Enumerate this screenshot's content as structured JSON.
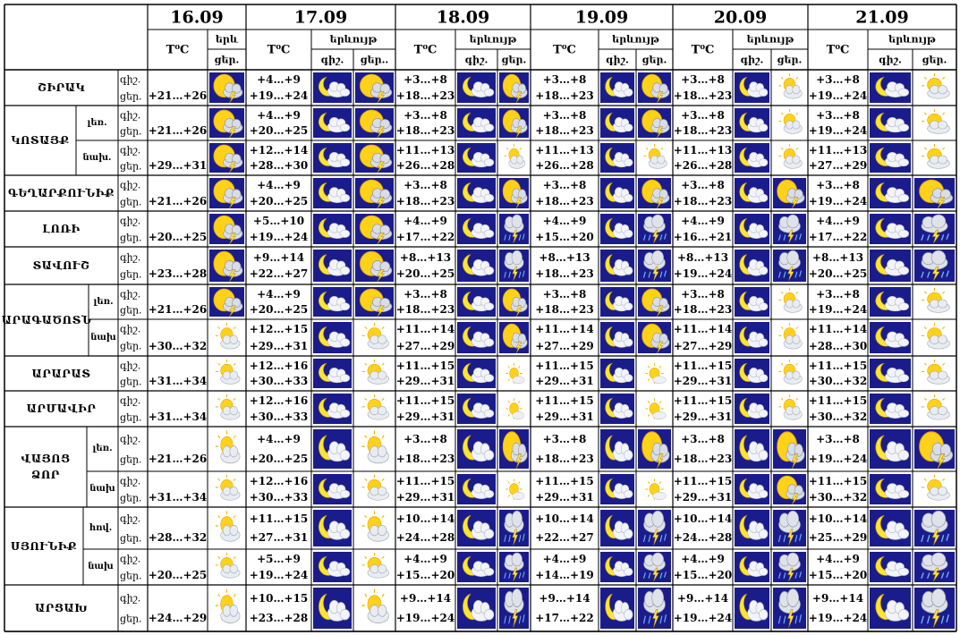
{
  "dates": [
    "16.09",
    "17.09",
    "18.09",
    "19.09",
    "20.09",
    "21.09"
  ],
  "header": {
    "temp": "T⁰C",
    "phen_first": "երև",
    "phen": "երևույթ",
    "night": "գիշ.",
    "day": "ցեր.",
    "day_cut": "ցեր.."
  },
  "regions": [
    {
      "name": "ՇԻՐԱԿ",
      "subs": [
        {
          "label": "",
          "first": [
            "+21…+26",
            "sun-storm"
          ],
          "days": [
            [
              "+4…+9",
              "+19…+24",
              "moon-cloud",
              "sun-storm"
            ],
            [
              "+3…+8",
              "+18…+23",
              "moon-cloud",
              "sun-storm"
            ],
            [
              "+3…+8",
              "+18…+23",
              "moon-cloud",
              "sun-storm"
            ],
            [
              "+3…+8",
              "+18…+23",
              "moon-cloud",
              "partly-sunny"
            ],
            [
              "+3…+8",
              "+19…+24",
              "moon-cloud",
              "partly-sunny"
            ]
          ]
        }
      ]
    },
    {
      "name": "ԿՈՏԱՅՔ",
      "subs": [
        {
          "label": "լեռ.",
          "first": [
            "+21…+26",
            "sun-storm"
          ],
          "days": [
            [
              "+4…+9",
              "+20…+25",
              "moon-cloud",
              "sun-storm"
            ],
            [
              "+3…+8",
              "+18…+23",
              "moon-cloud",
              "sun-storm"
            ],
            [
              "+3…+8",
              "+18…+23",
              "moon-cloud",
              "sun-storm"
            ],
            [
              "+3…+8",
              "+18…+23",
              "moon-cloud",
              "partly-sunny"
            ],
            [
              "+3…+8",
              "+19…+24",
              "moon-cloud",
              "partly-sunny"
            ]
          ]
        },
        {
          "label": "նախ.",
          "first": [
            "+29…+31",
            "sun-storm"
          ],
          "days": [
            [
              "+12…+14",
              "+28…+30",
              "moon-cloud",
              "sun-storm"
            ],
            [
              "+11…+13",
              "+26…+28",
              "moon-cloud",
              "partly-sunny"
            ],
            [
              "+11…+13",
              "+26…+28",
              "moon-cloud",
              "partly-sunny"
            ],
            [
              "+11…+13",
              "+26…+28",
              "moon-cloud",
              "partly-sunny"
            ],
            [
              "+11…+13",
              "+27…+29",
              "moon-cloud",
              "partly-sunny"
            ]
          ]
        }
      ]
    },
    {
      "name": "ԳԵՂԱՐՔՈՒՆԻՔ",
      "subs": [
        {
          "label": "",
          "first": [
            "+21…+26",
            "sun-storm"
          ],
          "days": [
            [
              "+4…+9",
              "+20…+25",
              "moon-cloud",
              "sun-storm"
            ],
            [
              "+3…+8",
              "+18…+23",
              "moon-cloud",
              "sun-storm"
            ],
            [
              "+3…+8",
              "+18…+23",
              "moon-cloud",
              "sun-storm"
            ],
            [
              "+3…+8",
              "+18…+23",
              "moon-cloud",
              "sun-storm"
            ],
            [
              "+3…+8",
              "+19…+24",
              "moon-cloud",
              "sun-storm"
            ]
          ]
        }
      ]
    },
    {
      "name": "ԼՈՌԻ",
      "subs": [
        {
          "label": "",
          "first": [
            "+20…+25",
            "sun-storm"
          ],
          "days": [
            [
              "+5…+10",
              "+19…+24",
              "moon-cloud",
              "sun-storm"
            ],
            [
              "+4…+9",
              "+17…+22",
              "moon-cloud",
              "cloud-storm"
            ],
            [
              "+4…+9",
              "+15…+20",
              "moon-cloud",
              "cloud-storm"
            ],
            [
              "+4…+9",
              "+16…+21",
              "moon-cloud",
              "cloud-storm"
            ],
            [
              "+4…+9",
              "+17…+22",
              "moon-cloud",
              "cloud-storm"
            ]
          ]
        }
      ]
    },
    {
      "name": "ՏԱՎՈՒՇ",
      "subs": [
        {
          "label": "",
          "first": [
            "+23…+28",
            "sun-storm"
          ],
          "days": [
            [
              "+9…+14",
              "+22…+27",
              "moon-cloud",
              "sun-storm"
            ],
            [
              "+8…+13",
              "+20…+25",
              "moon-cloud",
              "cloud-storm"
            ],
            [
              "+8…+13",
              "+18…+23",
              "moon-cloud",
              "cloud-storm"
            ],
            [
              "+8…+13",
              "+19…+24",
              "moon-cloud",
              "cloud-storm"
            ],
            [
              "+8…+13",
              "+20…+25",
              "moon-cloud",
              "cloud-storm"
            ]
          ]
        }
      ]
    },
    {
      "name": "ԱՐԱԳԱԾՈՏՆ",
      "subs": [
        {
          "label": "լեռ.",
          "first": [
            "+21…+26",
            "sun-storm"
          ],
          "days": [
            [
              "+4…+9",
              "+20…+25",
              "moon-cloud",
              "sun-storm"
            ],
            [
              "+3…+8",
              "+18…+23",
              "moon-cloud",
              "sun-storm"
            ],
            [
              "+3…+8",
              "+18…+23",
              "moon-cloud",
              "sun-storm"
            ],
            [
              "+3…+8",
              "+18…+23",
              "moon-cloud",
              "partly-sunny"
            ],
            [
              "+3…+8",
              "+19…+24",
              "moon-cloud",
              "partly-sunny"
            ]
          ]
        },
        {
          "label": "նախ",
          "first": [
            "+30…+32",
            "partly-sunny"
          ],
          "days": [
            [
              "+12…+15",
              "+29…+31",
              "moon-cloud",
              "partly-sunny"
            ],
            [
              "+11…+14",
              "+27…+29",
              "moon-cloud",
              "sun-storm"
            ],
            [
              "+11…+14",
              "+27…+29",
              "moon-cloud",
              "sun-storm"
            ],
            [
              "+11…+14",
              "+27…+29",
              "moon-cloud",
              "partly-sunny"
            ],
            [
              "+11…+14",
              "+28…+30",
              "moon-cloud",
              "partly-sunny"
            ]
          ]
        }
      ]
    },
    {
      "name": "ԱՐԱՐԱՏ",
      "subs": [
        {
          "label": "",
          "first": [
            "+31…+34",
            "partly-sunny"
          ],
          "days": [
            [
              "+12…+16",
              "+30…+33",
              "moon-cloud",
              "partly-sunny"
            ],
            [
              "+11…+15",
              "+29…+31",
              "moon-cloud",
              "sun-small"
            ],
            [
              "+11…+15",
              "+29…+31",
              "moon-cloud",
              "sun-small"
            ],
            [
              "+11…+15",
              "+29…+31",
              "moon-cloud",
              "partly-sunny"
            ],
            [
              "+11…+15",
              "+30…+32",
              "moon-cloud",
              "partly-sunny"
            ]
          ]
        }
      ]
    },
    {
      "name": "ԱՐՄԱՎԻՐ",
      "subs": [
        {
          "label": "",
          "first": [
            "+31…+34",
            "partly-sunny"
          ],
          "days": [
            [
              "+12…+16",
              "+30…+33",
              "moon-cloud",
              "partly-sunny"
            ],
            [
              "+11…+15",
              "+29…+31",
              "moon-cloud",
              "sun-small"
            ],
            [
              "+11…+15",
              "+29…+31",
              "moon-cloud",
              "sun-small"
            ],
            [
              "+11…+15",
              "+29…+31",
              "moon-cloud",
              "partly-sunny"
            ],
            [
              "+11…+15",
              "+30…+32",
              "moon-cloud",
              "partly-sunny"
            ]
          ]
        }
      ]
    },
    {
      "name": "ՎԱՅՈՑ",
      "name2": "ՁՈՐ",
      "subs": [
        {
          "label": "լեռ.",
          "first": [
            "+21…+26",
            "partly-sunny"
          ],
          "days": [
            [
              "+4…+9",
              "+20…+25",
              "moon-cloud",
              "partly-sunny"
            ],
            [
              "+3…+8",
              "+18…+23",
              "moon-cloud",
              "sun-storm"
            ],
            [
              "+3…+8",
              "+18…+23",
              "moon-cloud",
              "sun-storm"
            ],
            [
              "+3…+8",
              "+18…+23",
              "moon-cloud",
              "sun-storm"
            ],
            [
              "+3…+8",
              "+19…+24",
              "moon-cloud",
              "sun-storm"
            ]
          ]
        },
        {
          "label": "նախ",
          "first": [
            "+31…+34",
            "partly-sunny"
          ],
          "days": [
            [
              "+12…+16",
              "+30…+33",
              "moon-cloud",
              "partly-sunny"
            ],
            [
              "+11…+15",
              "+29…+31",
              "moon-cloud",
              "sun-small"
            ],
            [
              "+11…+15",
              "+29…+31",
              "moon-cloud",
              "sun-small"
            ],
            [
              "+11…+15",
              "+29…+31",
              "moon-cloud",
              "sun-storm"
            ],
            [
              "+11…+15",
              "+30…+32",
              "moon-cloud",
              "partly-sunny"
            ]
          ]
        }
      ]
    },
    {
      "name": "ՍՅՈՒՆԻՔ",
      "subs": [
        {
          "label": "հով.",
          "first": [
            "+28…+32",
            "partly-sunny"
          ],
          "days": [
            [
              "+11…+15",
              "+27…+31",
              "moon-cloud",
              "partly-sunny"
            ],
            [
              "+10…+14",
              "+24…+28",
              "moon-cloud",
              "cloud-storm"
            ],
            [
              "+10…+14",
              "+22…+27",
              "moon-cloud",
              "cloud-storm"
            ],
            [
              "+10…+14",
              "+24…+28",
              "moon-cloud",
              "cloud-storm"
            ],
            [
              "+10…+14",
              "+25…+29",
              "moon-cloud",
              "cloud-storm"
            ]
          ]
        },
        {
          "label": "նախ",
          "first": [
            "+20…+25",
            "partly-sunny"
          ],
          "days": [
            [
              "+5…+9",
              "+19…+24",
              "moon-cloud",
              "partly-sunny"
            ],
            [
              "+4…+9",
              "+15…+20",
              "moon-cloud",
              "cloud-storm"
            ],
            [
              "+4…+9",
              "+14…+19",
              "moon-cloud",
              "cloud-storm"
            ],
            [
              "+4…+9",
              "+15…+20",
              "moon-cloud",
              "cloud-storm"
            ],
            [
              "+4…+9",
              "+15…+20",
              "moon-cloud",
              "cloud-storm"
            ]
          ]
        }
      ]
    },
    {
      "name": "ԱՐՑԱԽ",
      "subs": [
        {
          "label": "",
          "first": [
            "+24…+29",
            "partly-sunny"
          ],
          "days": [
            [
              "+10…+15",
              "+23…+28",
              "moon-cloud",
              "partly-sunny"
            ],
            [
              "+9…+14",
              "+19…+24",
              "moon-cloud",
              "cloud-storm"
            ],
            [
              "+9…+14",
              "+17…+22",
              "moon-cloud",
              "cloud-storm"
            ],
            [
              "+9…+14",
              "+19…+24",
              "moon-cloud",
              "cloud-storm"
            ],
            [
              "+9…+14",
              "+19…+24",
              "moon-cloud",
              "cloud-storm"
            ]
          ]
        }
      ]
    }
  ]
}
